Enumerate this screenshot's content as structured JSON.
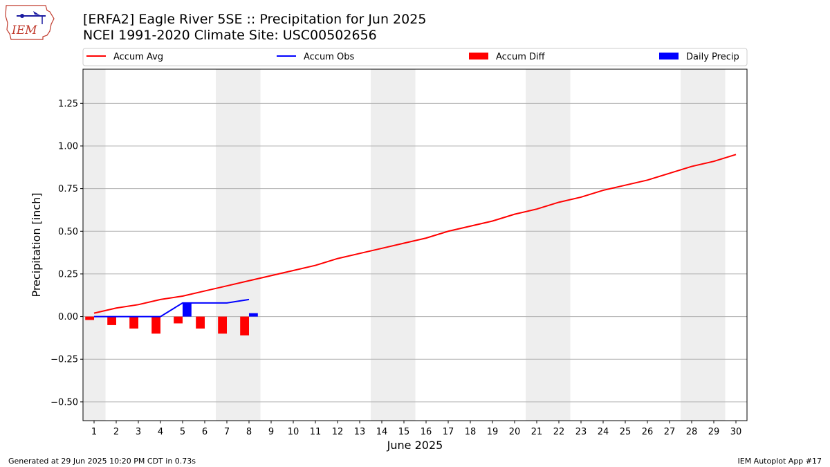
{
  "header": {
    "title": "[ERFA2] Eagle River 5SE :: Precipitation for Jun 2025",
    "subtitle": "NCEI 1991-2020 Climate Site: USC00502656",
    "logo_text": "IEM"
  },
  "footer": {
    "generated": "Generated at 29 Jun 2025 10:20 PM CDT in 0.73s",
    "app": "IEM Autoplot App #17"
  },
  "colors": {
    "accum_avg": "#ff0000",
    "accum_obs": "#0000ff",
    "accum_diff": "#ff0000",
    "daily_precip": "#0000ff",
    "weekend_band": "#eeeeee",
    "grid": "#b0b0b0"
  },
  "chart_data": {
    "type": "line",
    "xlabel": "June 2025",
    "ylabel": "Precipitation [inch]",
    "xlim": [
      0.5,
      30.5
    ],
    "ylim": [
      -0.61,
      1.45
    ],
    "yticks": [
      -0.5,
      -0.25,
      0.0,
      0.25,
      0.5,
      0.75,
      1.0,
      1.25
    ],
    "ytick_labels": [
      "−0.50",
      "−0.25",
      "0.00",
      "0.25",
      "0.50",
      "0.75",
      "1.00",
      "1.25"
    ],
    "x": [
      1,
      2,
      3,
      4,
      5,
      6,
      7,
      8,
      9,
      10,
      11,
      12,
      13,
      14,
      15,
      16,
      17,
      18,
      19,
      20,
      21,
      22,
      23,
      24,
      25,
      26,
      27,
      28,
      29,
      30
    ],
    "xtick_labels": [
      "1",
      "2",
      "3",
      "4",
      "5",
      "6",
      "7",
      "8",
      "9",
      "10",
      "11",
      "12",
      "13",
      "14",
      "15",
      "16",
      "17",
      "18",
      "19",
      "20",
      "21",
      "22",
      "23",
      "24",
      "25",
      "26",
      "27",
      "28",
      "29",
      "30"
    ],
    "grid": "horizontal",
    "legend": "top",
    "weekend_days": [
      1,
      7,
      8,
      14,
      15,
      21,
      22,
      28,
      29
    ],
    "series": [
      {
        "name": "Accum Avg",
        "type": "line",
        "x": [
          1,
          2,
          3,
          4,
          5,
          6,
          7,
          8,
          9,
          10,
          11,
          12,
          13,
          14,
          15,
          16,
          17,
          18,
          19,
          20,
          21,
          22,
          23,
          24,
          25,
          26,
          27,
          28,
          29,
          30
        ],
        "values": [
          0.02,
          0.05,
          0.07,
          0.1,
          0.12,
          0.15,
          0.18,
          0.21,
          0.24,
          0.27,
          0.3,
          0.34,
          0.37,
          0.4,
          0.43,
          0.46,
          0.5,
          0.53,
          0.56,
          0.6,
          0.63,
          0.67,
          0.7,
          0.74,
          0.77,
          0.8,
          0.84,
          0.88,
          0.91,
          0.95
        ]
      },
      {
        "name": "Accum Obs",
        "type": "line",
        "x": [
          1,
          2,
          3,
          4,
          5,
          6,
          7,
          8
        ],
        "values": [
          0.0,
          0.0,
          0.0,
          0.0,
          0.08,
          0.08,
          0.08,
          0.1
        ]
      },
      {
        "name": "Accum Diff",
        "type": "bar",
        "x": [
          1,
          2,
          3,
          4,
          5,
          6,
          7,
          8
        ],
        "values": [
          -0.02,
          -0.05,
          -0.07,
          -0.1,
          -0.04,
          -0.07,
          -0.1,
          -0.11
        ]
      },
      {
        "name": "Daily Precip",
        "type": "bar",
        "x": [
          5,
          8
        ],
        "values": [
          0.08,
          0.02
        ]
      }
    ]
  }
}
